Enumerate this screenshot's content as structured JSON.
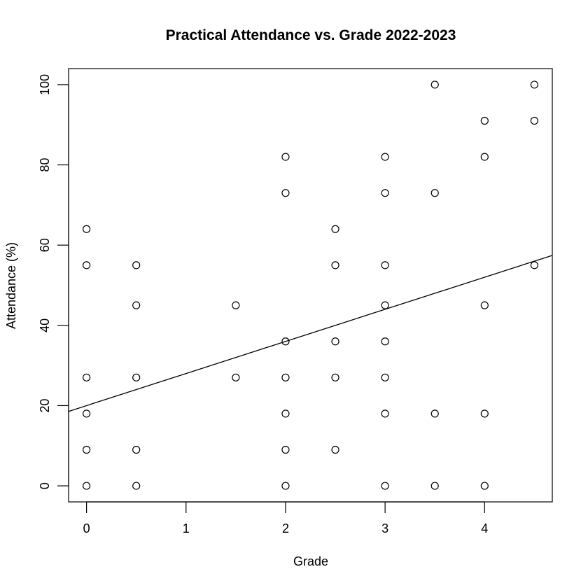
{
  "chart_data": {
    "type": "scatter",
    "title": "Practical Attendance vs. Grade 2022-2023",
    "xlabel": "Grade",
    "ylabel": "Attendance (%)",
    "xlim": [
      -0.18,
      4.68
    ],
    "ylim": [
      -4,
      104
    ],
    "xticks": [
      0,
      1,
      2,
      3,
      4
    ],
    "yticks": [
      0,
      20,
      40,
      60,
      80,
      100
    ],
    "xtick_labels": [
      "0",
      "1",
      "2",
      "3",
      "4"
    ],
    "ytick_labels": [
      "0",
      "20",
      "40",
      "60",
      "80",
      "100"
    ],
    "grid": false,
    "points": [
      [
        0,
        64
      ],
      [
        0,
        55
      ],
      [
        0,
        27
      ],
      [
        0,
        18
      ],
      [
        0,
        9
      ],
      [
        0,
        0
      ],
      [
        0.5,
        55
      ],
      [
        0.5,
        45
      ],
      [
        0.5,
        27
      ],
      [
        0.5,
        9
      ],
      [
        0.5,
        0
      ],
      [
        1.5,
        45
      ],
      [
        1.5,
        27
      ],
      [
        2,
        82
      ],
      [
        2,
        73
      ],
      [
        2,
        36
      ],
      [
        2,
        27
      ],
      [
        2,
        18
      ],
      [
        2,
        9
      ],
      [
        2,
        0
      ],
      [
        2.5,
        64
      ],
      [
        2.5,
        55
      ],
      [
        2.5,
        36
      ],
      [
        2.5,
        27
      ],
      [
        2.5,
        9
      ],
      [
        3,
        82
      ],
      [
        3,
        73
      ],
      [
        3,
        55
      ],
      [
        3,
        45
      ],
      [
        3,
        36
      ],
      [
        3,
        27
      ],
      [
        3,
        18
      ],
      [
        3,
        0
      ],
      [
        3.5,
        100
      ],
      [
        3.5,
        73
      ],
      [
        3.5,
        18
      ],
      [
        3.5,
        0
      ],
      [
        4,
        91
      ],
      [
        4,
        82
      ],
      [
        4,
        45
      ],
      [
        4,
        18
      ],
      [
        4,
        0
      ],
      [
        4.5,
        100
      ],
      [
        4.5,
        91
      ],
      [
        4.5,
        55
      ]
    ],
    "regression_line": {
      "intercept": 20.0,
      "slope": 8.0
    }
  }
}
